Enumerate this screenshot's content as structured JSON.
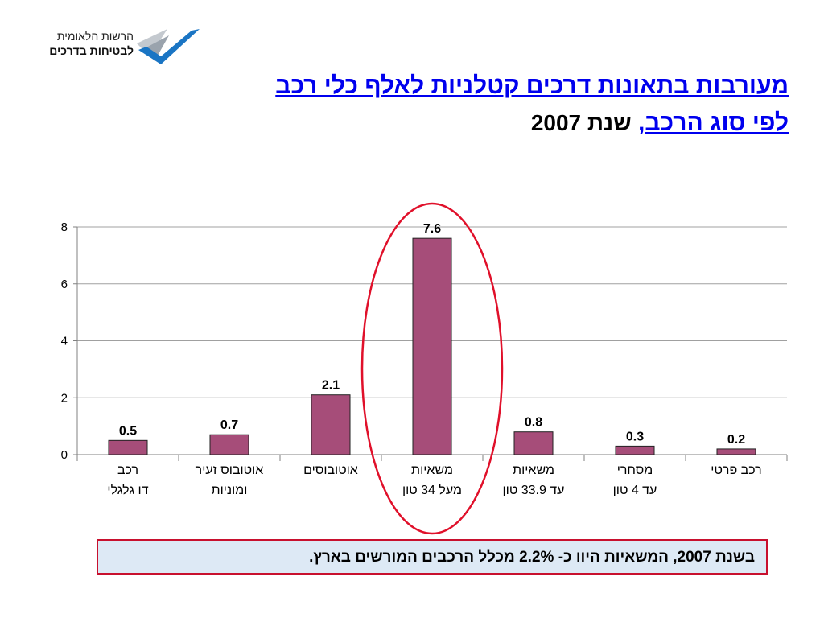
{
  "logo": {
    "line1": "הרשות הלאומית",
    "line2": "לבטיחות בדרכים",
    "colors": {
      "gray": "#9aa3ad",
      "blue": "#1a75c4"
    }
  },
  "title": {
    "line1": "מעורבות בתאונות דרכים קטלניות לאלף כלי רכב",
    "line2_link": "לפי סוג הרכב,",
    "line2_rest": "שנת 2007"
  },
  "chart_data": {
    "type": "bar",
    "categories": [
      [
        "רכב",
        "דו גלגלי"
      ],
      [
        "אוטובוס זעיר",
        "ומוניות"
      ],
      [
        "אוטובוסים"
      ],
      [
        "משאיות",
        "מעל 34 טון"
      ],
      [
        "משאיות",
        "עד 33.9 טון"
      ],
      [
        "מסחרי",
        "עד 4 טון"
      ],
      [
        "רכב פרטי"
      ]
    ],
    "values": [
      0.5,
      0.7,
      2.1,
      7.6,
      0.8,
      0.3,
      0.2
    ],
    "value_labels": [
      "0.5",
      "0.7",
      "2.1",
      "7.6",
      "0.8",
      "0.3",
      "0.2"
    ],
    "yticks": [
      "0",
      "2",
      "4",
      "6",
      "8"
    ],
    "ylim": [
      0,
      8
    ],
    "grid": true,
    "highlighted_category_index": 3,
    "colors": {
      "bar": "#a64d79",
      "highlight": "#e0102a",
      "grid": "#a0a0a0"
    }
  },
  "note": {
    "text": "בשנת 2007, המשאיות היוו כ- 2.2% מכלל הרכבים המורשים בארץ."
  }
}
